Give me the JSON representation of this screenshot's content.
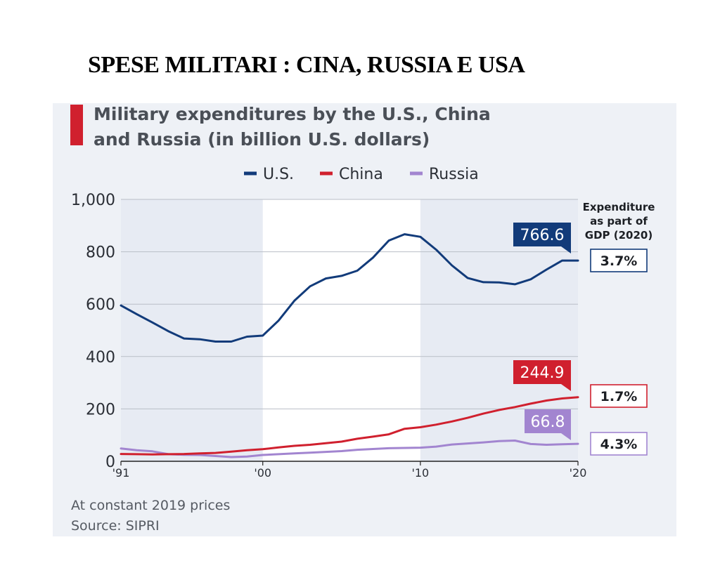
{
  "page": {
    "title": "SPESE MILITARI : CINA, RUSSIA E USA"
  },
  "chart_data": {
    "type": "line",
    "title": "Military expenditures by the U.S., China and Russia (in billion U.S. dollars)",
    "title_lines": [
      "Military expenditures by the U.S., China",
      "and Russia (in billion U.S. dollars)"
    ],
    "x": [
      1991,
      1992,
      1993,
      1994,
      1995,
      1996,
      1997,
      1998,
      1999,
      2000,
      2001,
      2002,
      2003,
      2004,
      2005,
      2006,
      2007,
      2008,
      2009,
      2010,
      2011,
      2012,
      2013,
      2014,
      2015,
      2016,
      2017,
      2018,
      2019,
      2020
    ],
    "xlim": [
      1991,
      2020
    ],
    "ylim": [
      0,
      1000
    ],
    "y_ticks": [
      0,
      200,
      400,
      600,
      800,
      1000
    ],
    "y_tick_labels": [
      "0",
      "200",
      "400",
      "600",
      "800",
      "1,000"
    ],
    "x_ticks": [
      1991,
      2000,
      2010,
      2020
    ],
    "x_tick_labels": [
      "'91",
      "'00",
      "'10",
      "'20"
    ],
    "shaded_ranges": [
      [
        1991,
        2000
      ],
      [
        2010,
        2020
      ]
    ],
    "grid": true,
    "legend_position": "top-center",
    "series": [
      {
        "name": "U.S.",
        "color": "#123b7a",
        "last_label": "766.6",
        "values": [
          595,
          562,
          530,
          497,
          469,
          466,
          457,
          457,
          476,
          480,
          537,
          613,
          668,
          698,
          708,
          728,
          778,
          843,
          867,
          857,
          808,
          748,
          700,
          684,
          683,
          676,
          695,
          732,
          766.6,
          766.6
        ]
      },
      {
        "name": "China",
        "color": "#d0202e",
        "last_label": "244.9",
        "values": [
          28,
          27,
          26,
          27,
          28,
          30,
          32,
          37,
          42,
          46,
          53,
          59,
          63,
          69,
          75,
          86,
          94,
          103,
          124,
          130,
          140,
          152,
          166,
          182,
          196,
          207,
          220,
          232,
          240,
          244.9
        ]
      },
      {
        "name": "Russia",
        "color": "#a285d0",
        "last_label": "66.8",
        "values": [
          49,
          42,
          38,
          27,
          25,
          24,
          20,
          16,
          18,
          24,
          27,
          30,
          33,
          36,
          39,
          44,
          47,
          50,
          51,
          52,
          56,
          64,
          68,
          72,
          77,
          79,
          66,
          63,
          65,
          66.8
        ]
      }
    ],
    "gdp_panel": {
      "header_lines": [
        "Expenditure",
        "as part of",
        "GDP (2020)"
      ],
      "items": [
        {
          "series": "U.S.",
          "value": "3.7%"
        },
        {
          "series": "China",
          "value": "1.7%"
        },
        {
          "series": "Russia",
          "value": "4.3%"
        }
      ]
    },
    "notes": [
      "At constant 2019 prices",
      "Source: SIPRI"
    ]
  }
}
